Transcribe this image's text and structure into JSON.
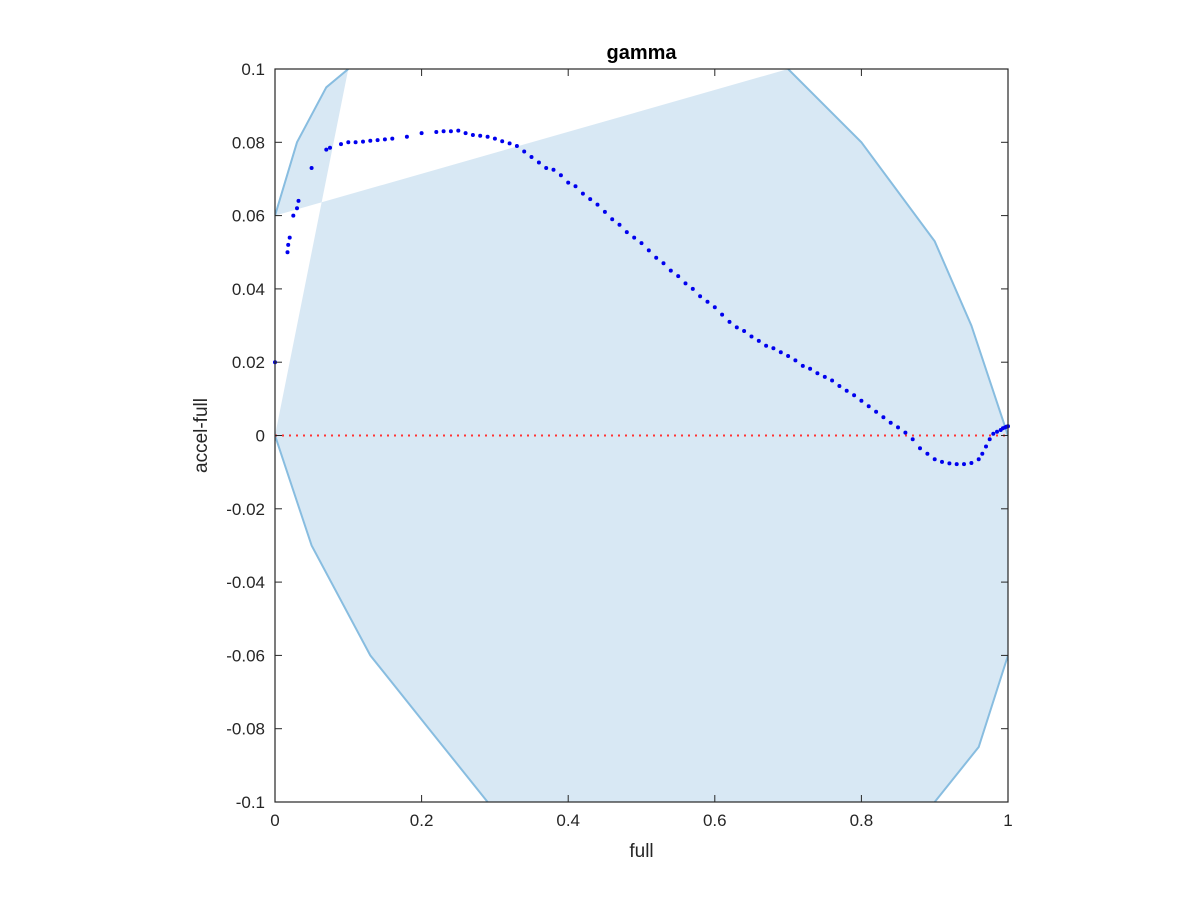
{
  "chart_data": {
    "type": "scatter",
    "title": "gamma",
    "xlabel": "full",
    "ylabel": "accel-full",
    "xlim": [
      0,
      1
    ],
    "ylim": [
      -0.1,
      0.1
    ],
    "xticks": [
      0,
      0.2,
      0.4,
      0.6,
      0.8,
      1
    ],
    "xtick_labels": [
      "0",
      "0.2",
      "0.4",
      "0.6",
      "0.8",
      "1"
    ],
    "yticks": [
      -0.1,
      -0.08,
      -0.06,
      -0.04,
      -0.02,
      0,
      0.02,
      0.04,
      0.06,
      0.08,
      0.1
    ],
    "ytick_labels": [
      "-0.1",
      "-0.08",
      "-0.06",
      "-0.04",
      "-0.02",
      "0",
      "0.02",
      "0.04",
      "0.06",
      "0.08",
      "0.1"
    ],
    "grid": false,
    "colors": {
      "points": "#0000ee",
      "zero_line": "#ff3333",
      "region_fill": "#d8e8f4",
      "region_edge": "#88bde0",
      "axes": "#262626"
    },
    "reference_line": {
      "y": 0,
      "style": "dotted"
    },
    "shaded_region": {
      "left_boundary": [
        [
          0.0,
          0.06
        ],
        [
          0.03,
          0.08
        ],
        [
          0.07,
          0.095
        ],
        [
          0.1,
          0.1
        ]
      ],
      "right_boundary": [
        [
          0.7,
          0.1
        ],
        [
          0.8,
          0.08
        ],
        [
          0.9,
          0.053
        ],
        [
          0.95,
          0.03
        ],
        [
          1.0,
          0.0
        ]
      ],
      "lower_left_boundary": [
        [
          0.0,
          0.0
        ],
        [
          0.05,
          -0.03
        ],
        [
          0.13,
          -0.06
        ],
        [
          0.21,
          -0.08
        ],
        [
          0.29,
          -0.1
        ]
      ],
      "lower_right_boundary": [
        [
          0.9,
          -0.1
        ],
        [
          0.96,
          -0.085
        ],
        [
          1.0,
          -0.06
        ]
      ]
    },
    "series": [
      {
        "x": [
          0.0,
          0.017,
          0.018,
          0.02,
          0.025,
          0.03,
          0.032,
          0.05,
          0.07,
          0.075,
          0.09,
          0.1,
          0.11,
          0.12,
          0.13,
          0.14,
          0.15,
          0.16,
          0.18,
          0.2,
          0.22,
          0.23,
          0.24,
          0.25,
          0.26,
          0.27,
          0.28,
          0.29,
          0.3,
          0.31,
          0.32,
          0.33,
          0.34,
          0.35,
          0.36,
          0.37,
          0.38,
          0.39,
          0.4,
          0.41,
          0.42,
          0.43,
          0.44,
          0.45,
          0.46,
          0.47,
          0.48,
          0.49,
          0.5,
          0.51,
          0.52,
          0.53,
          0.54,
          0.55,
          0.56,
          0.57,
          0.58,
          0.59,
          0.6,
          0.61,
          0.62,
          0.63,
          0.64,
          0.65,
          0.66,
          0.67,
          0.68,
          0.69,
          0.7,
          0.71,
          0.72,
          0.73,
          0.74,
          0.75,
          0.76,
          0.77,
          0.78,
          0.79,
          0.8,
          0.81,
          0.82,
          0.83,
          0.84,
          0.85,
          0.86,
          0.87,
          0.88,
          0.89,
          0.9,
          0.91,
          0.92,
          0.93,
          0.94,
          0.95,
          0.96,
          0.965,
          0.97,
          0.975,
          0.98,
          0.985,
          0.99,
          0.993,
          0.996,
          0.998,
          1.0
        ],
        "y": [
          0.02,
          0.05,
          0.052,
          0.054,
          0.06,
          0.062,
          0.064,
          0.073,
          0.078,
          0.0785,
          0.0795,
          0.08,
          0.08,
          0.0802,
          0.0804,
          0.0806,
          0.0808,
          0.081,
          0.0815,
          0.0825,
          0.0828,
          0.083,
          0.083,
          0.0832,
          0.0825,
          0.082,
          0.0818,
          0.0815,
          0.081,
          0.0803,
          0.0797,
          0.079,
          0.0775,
          0.076,
          0.0745,
          0.073,
          0.0725,
          0.071,
          0.069,
          0.068,
          0.066,
          0.0645,
          0.063,
          0.061,
          0.059,
          0.0575,
          0.0555,
          0.054,
          0.0525,
          0.0505,
          0.0485,
          0.047,
          0.045,
          0.0435,
          0.0415,
          0.04,
          0.038,
          0.0365,
          0.035,
          0.033,
          0.031,
          0.0295,
          0.0285,
          0.027,
          0.0258,
          0.0245,
          0.0238,
          0.0227,
          0.0217,
          0.0205,
          0.019,
          0.0182,
          0.017,
          0.016,
          0.015,
          0.0135,
          0.0122,
          0.011,
          0.0095,
          0.008,
          0.0065,
          0.005,
          0.0035,
          0.0022,
          0.0008,
          -0.001,
          -0.0035,
          -0.005,
          -0.0065,
          -0.0072,
          -0.0076,
          -0.0078,
          -0.0078,
          -0.0075,
          -0.0065,
          -0.005,
          -0.003,
          -0.001,
          0.0005,
          0.001,
          0.0015,
          0.002,
          0.0022,
          0.0024,
          0.0025
        ]
      }
    ]
  }
}
